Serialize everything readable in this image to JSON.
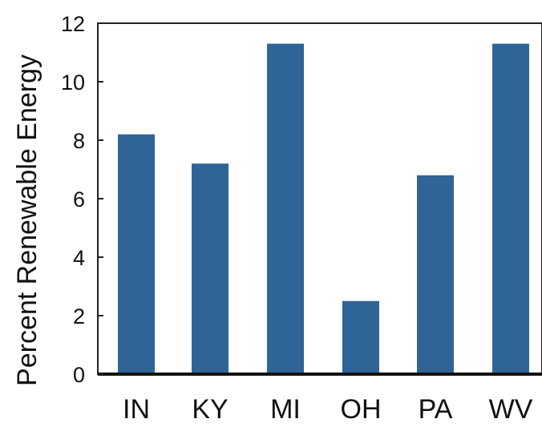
{
  "chart_data": {
    "type": "bar",
    "categories": [
      "IN",
      "KY",
      "MI",
      "OH",
      "PA",
      "WV"
    ],
    "values": [
      8.2,
      7.2,
      11.3,
      2.5,
      6.8,
      11.3
    ],
    "xlabel": "",
    "ylabel": "Percent Renewable Energy",
    "ylim": [
      0,
      12
    ],
    "yticks": [
      0,
      2,
      4,
      6,
      8,
      10,
      12
    ],
    "grid": false,
    "bar_color": "#2f6496"
  }
}
